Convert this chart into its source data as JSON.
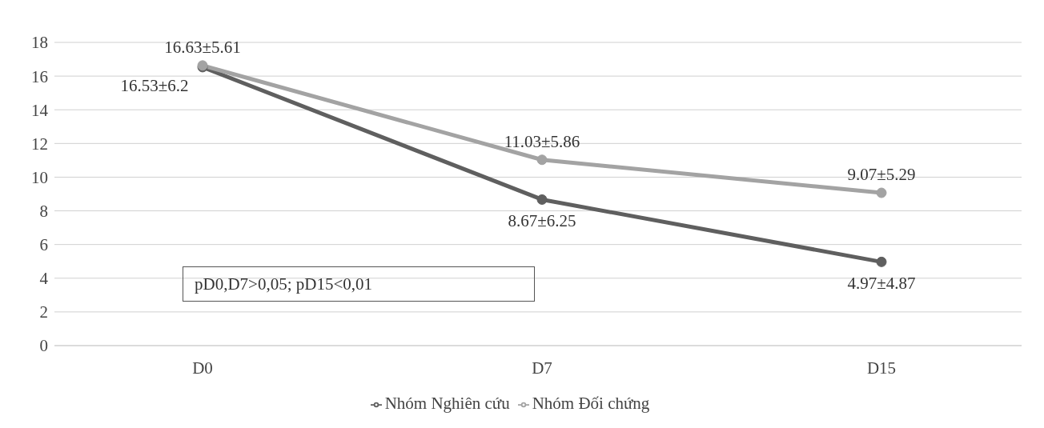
{
  "chart_data": {
    "type": "line",
    "categories": [
      "D0",
      "D7",
      "D15"
    ],
    "series": [
      {
        "name": "Nhóm Nghiên cứu",
        "color": "#5f5f5f",
        "values": [
          16.53,
          8.67,
          4.97
        ],
        "value_labels": [
          "16.53±6.2",
          "8.67±6.25",
          "4.97±4.87"
        ]
      },
      {
        "name": "Nhóm Đối chứng",
        "color": "#a3a3a3",
        "values": [
          16.63,
          11.03,
          9.07
        ],
        "value_labels": [
          "16.63±5.61",
          "11.03±5.86",
          "9.07±5.29"
        ]
      }
    ],
    "ylim": [
      0,
      18
    ],
    "yticks": [
      0,
      2,
      4,
      6,
      8,
      10,
      12,
      14,
      16,
      18
    ],
    "grid": "y",
    "legend": "bottom",
    "marker": "circle",
    "line_style": "solid",
    "annotations": [
      "pD0,D7>0,05; pD15<0,01"
    ]
  }
}
